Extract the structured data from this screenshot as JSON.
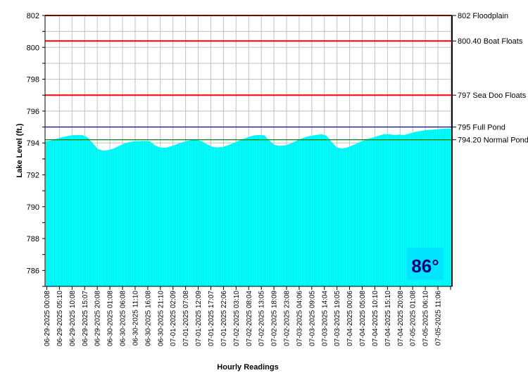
{
  "chart_data": {
    "type": "area",
    "xlabel": "Hourly Readings",
    "ylabel": "Lake Level (ft.)",
    "ylim": [
      785,
      802
    ],
    "yticks": [
      786,
      788,
      790,
      792,
      794,
      796,
      798,
      800,
      802
    ],
    "grid": true,
    "fill_color": "#00ffff",
    "x_labels": [
      "06-29-2025 00:08",
      "06-29-2025 05:10",
      "06-29-2025 10:08",
      "06-29-2025 15:07",
      "06-29-2025 20:08",
      "06-30-2025 01:08",
      "06-30-2025 06:08",
      "06-30-2025 11:10",
      "06-30-2025 16:08",
      "06-30-2025 21:10",
      "07-01-2025 02:09",
      "07-01-2025 07:08",
      "07-01-2025 12:09",
      "07-01-2025 17:07",
      "07-01-2025 22:06",
      "07-02-2025 03:10",
      "07-02-2025 08:04",
      "07-02-2025 13:05",
      "07-02-2025 18:09",
      "07-02-2025 23:08",
      "07-03-2025 04:06",
      "07-03-2025 09:05",
      "07-03-2025 14:04",
      "07-03-2025 19:05",
      "07-04-2025 00:06",
      "07-04-2025 05:08",
      "07-04-2025 10:10",
      "07-04-2025 15:10",
      "07-04-2025 20:08",
      "07-05-2025 01:08",
      "07-05-2025 06:10",
      "07-05-2025 11:06"
    ],
    "series": [
      {
        "values": [
          794.1,
          794.15,
          794.25,
          794.35,
          794.42,
          794.48,
          794.5,
          794.5,
          794.35,
          794.0,
          793.62,
          793.52,
          793.55,
          793.65,
          793.8,
          793.95,
          794.05,
          794.1,
          794.12,
          794.13,
          794.1,
          793.85,
          793.72,
          793.7,
          793.78,
          793.9,
          794.02,
          794.12,
          794.18,
          794.2,
          794.1,
          793.92,
          793.76,
          793.72,
          793.75,
          793.85,
          793.98,
          794.12,
          794.25,
          794.37,
          794.47,
          794.5,
          794.48,
          794.15,
          793.88,
          793.82,
          793.85,
          793.95,
          794.1,
          794.25,
          794.37,
          794.45,
          794.5,
          794.55,
          794.45,
          794.05,
          793.72,
          793.65,
          793.72,
          793.85,
          794.0,
          794.13,
          794.25,
          794.35,
          794.45,
          794.55,
          794.55,
          794.5,
          794.52,
          794.5,
          794.6,
          794.68,
          794.75,
          794.8,
          794.82,
          794.85,
          794.88,
          794.9,
          794.9
        ]
      }
    ],
    "reference_lines": [
      {
        "value": 802,
        "label": "802 Floodplain",
        "color": "#ff0000"
      },
      {
        "value": 800.4,
        "label": "800.40 Boat Floats",
        "color": "#ff0000"
      },
      {
        "value": 797,
        "label": "797 Sea Doo Floats",
        "color": "#ff0000"
      },
      {
        "value": 795,
        "label": "795 Full Pond",
        "color": "#000080"
      },
      {
        "value": 794.2,
        "label": "794.20 Normal Pond",
        "color": "#008000"
      }
    ]
  },
  "temperature": {
    "text": "86°",
    "box_color": "#00e5ff",
    "text_color": "#000080"
  }
}
